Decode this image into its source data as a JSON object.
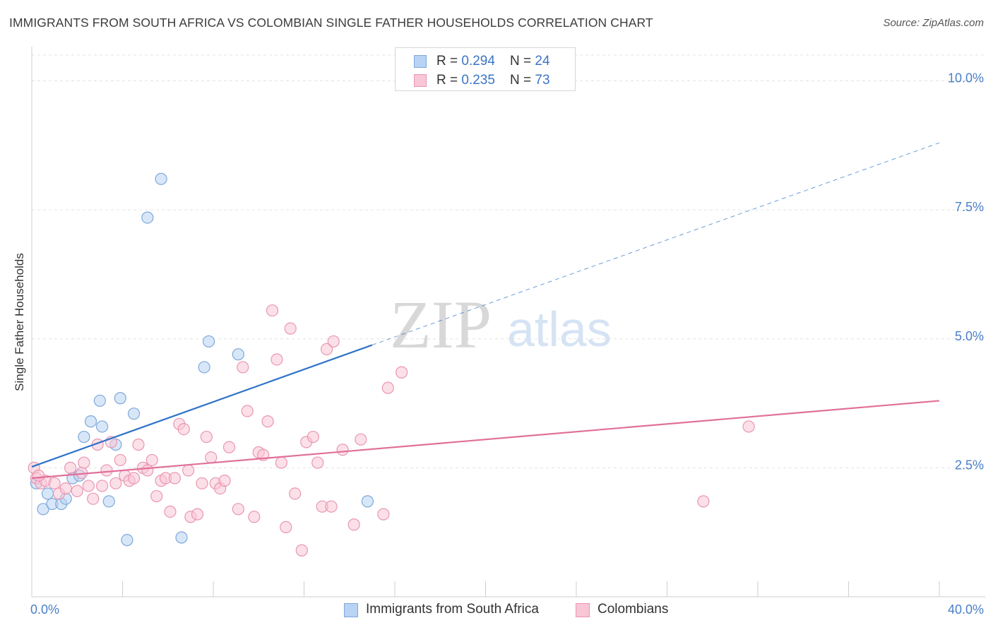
{
  "title": "IMMIGRANTS FROM SOUTH AFRICA VS COLOMBIAN SINGLE FATHER HOUSEHOLDS CORRELATION CHART",
  "source": "Source: ZipAtlas.com",
  "watermark": {
    "zip": "ZIP",
    "atlas": "atlas"
  },
  "colors": {
    "blue_fill": "#b8d3f3",
    "blue_stroke": "#7ea8da",
    "blue_line": "#2f72c8",
    "pink_fill": "#f9c6d6",
    "pink_stroke": "#e996b3",
    "pink_line": "#e0709a",
    "grid": "#e3e3e3",
    "tick_text": "#4a7fc8"
  },
  "stats": [
    {
      "r_label": "R = ",
      "r_value": "0.294",
      "n_label": "N = ",
      "n_value": "24"
    },
    {
      "r_label": "R = ",
      "r_value": "0.235",
      "n_label": "N = ",
      "n_value": "73"
    }
  ],
  "chart_data": {
    "type": "scatter",
    "title": "IMMIGRANTS FROM SOUTH AFRICA VS COLOMBIAN SINGLE FATHER HOUSEHOLDS CORRELATION CHART",
    "xlabel": "",
    "ylabel": "Single Father Households",
    "xlim": [
      0,
      40
    ],
    "ylim": [
      0,
      10.5
    ],
    "x_tick_labels": [
      {
        "value": 0,
        "label": "0.0%"
      },
      {
        "value": 40,
        "label": "40.0%"
      }
    ],
    "x_minor_ticks": [
      0,
      4,
      8,
      12,
      16,
      20,
      24,
      28,
      32,
      36,
      40
    ],
    "y_ticks": [
      {
        "value": 2.5,
        "label": "2.5%"
      },
      {
        "value": 5.0,
        "label": "5.0%"
      },
      {
        "value": 7.5,
        "label": "7.5%"
      },
      {
        "value": 10.0,
        "label": "10.0%"
      }
    ],
    "grid": true,
    "legend_position": "bottom-center",
    "series": [
      {
        "name": "Immigrants from South Africa",
        "color": "blue",
        "points": [
          [
            0.2,
            2.2
          ],
          [
            0.5,
            1.7
          ],
          [
            0.7,
            2.0
          ],
          [
            0.9,
            1.8
          ],
          [
            1.3,
            1.8
          ],
          [
            1.5,
            1.9
          ],
          [
            1.8,
            2.3
          ],
          [
            2.1,
            2.35
          ],
          [
            2.3,
            3.1
          ],
          [
            2.6,
            3.4
          ],
          [
            3.0,
            3.8
          ],
          [
            3.1,
            3.3
          ],
          [
            3.4,
            1.85
          ],
          [
            3.7,
            2.95
          ],
          [
            3.9,
            3.85
          ],
          [
            4.2,
            1.1
          ],
          [
            4.5,
            3.55
          ],
          [
            5.1,
            7.35
          ],
          [
            5.7,
            8.1
          ],
          [
            6.6,
            1.15
          ],
          [
            7.6,
            4.45
          ],
          [
            7.8,
            4.95
          ],
          [
            9.1,
            4.7
          ],
          [
            14.8,
            1.85
          ]
        ],
        "trend": {
          "x0": 0,
          "y0": 2.52,
          "x1": 15,
          "y1": 4.88,
          "dash_to_x": 40,
          "dash_to_y": 8.8
        }
      },
      {
        "name": "Colombians",
        "color": "pink",
        "points": [
          [
            0.1,
            2.5
          ],
          [
            0.2,
            2.3
          ],
          [
            0.4,
            2.2
          ],
          [
            0.6,
            2.25
          ],
          [
            1.0,
            2.2
          ],
          [
            1.2,
            2.0
          ],
          [
            1.5,
            2.1
          ],
          [
            1.7,
            2.5
          ],
          [
            2.0,
            2.05
          ],
          [
            2.2,
            2.4
          ],
          [
            2.3,
            2.6
          ],
          [
            2.5,
            2.15
          ],
          [
            2.7,
            1.9
          ],
          [
            2.9,
            2.95
          ],
          [
            3.1,
            2.15
          ],
          [
            3.3,
            2.45
          ],
          [
            3.5,
            3.0
          ],
          [
            3.7,
            2.2
          ],
          [
            3.9,
            2.65
          ],
          [
            4.1,
            2.35
          ],
          [
            4.3,
            2.25
          ],
          [
            4.5,
            2.3
          ],
          [
            4.7,
            2.95
          ],
          [
            4.9,
            2.5
          ],
          [
            5.1,
            2.45
          ],
          [
            5.3,
            2.65
          ],
          [
            5.5,
            1.95
          ],
          [
            5.7,
            2.25
          ],
          [
            5.9,
            2.3
          ],
          [
            6.1,
            1.65
          ],
          [
            6.3,
            2.3
          ],
          [
            6.5,
            3.35
          ],
          [
            6.7,
            3.25
          ],
          [
            6.9,
            2.45
          ],
          [
            7.0,
            1.55
          ],
          [
            7.3,
            1.6
          ],
          [
            7.5,
            2.2
          ],
          [
            7.7,
            3.1
          ],
          [
            7.9,
            2.7
          ],
          [
            8.1,
            2.2
          ],
          [
            8.3,
            2.1
          ],
          [
            8.5,
            2.25
          ],
          [
            8.7,
            2.9
          ],
          [
            9.1,
            1.7
          ],
          [
            9.3,
            4.45
          ],
          [
            9.5,
            3.6
          ],
          [
            9.8,
            1.55
          ],
          [
            10.0,
            2.8
          ],
          [
            10.2,
            2.75
          ],
          [
            10.4,
            3.4
          ],
          [
            10.6,
            5.55
          ],
          [
            10.8,
            4.6
          ],
          [
            11.0,
            2.6
          ],
          [
            11.2,
            1.35
          ],
          [
            11.4,
            5.2
          ],
          [
            11.6,
            2.0
          ],
          [
            11.9,
            0.9
          ],
          [
            12.1,
            3.0
          ],
          [
            12.4,
            3.1
          ],
          [
            12.6,
            2.6
          ],
          [
            12.8,
            1.75
          ],
          [
            13.0,
            4.8
          ],
          [
            13.2,
            1.75
          ],
          [
            13.3,
            4.95
          ],
          [
            13.7,
            2.85
          ],
          [
            14.2,
            1.4
          ],
          [
            14.5,
            3.05
          ],
          [
            15.5,
            1.6
          ],
          [
            15.7,
            4.05
          ],
          [
            16.3,
            4.35
          ],
          [
            29.6,
            1.85
          ],
          [
            31.6,
            3.3
          ],
          [
            0.3,
            2.35
          ]
        ],
        "trend": {
          "x0": 0,
          "y0": 2.3,
          "x1": 40,
          "y1": 3.8
        }
      }
    ]
  },
  "legend": [
    {
      "label": "Immigrants from South Africa",
      "color": "blue"
    },
    {
      "label": "Colombians",
      "color": "pink"
    }
  ]
}
